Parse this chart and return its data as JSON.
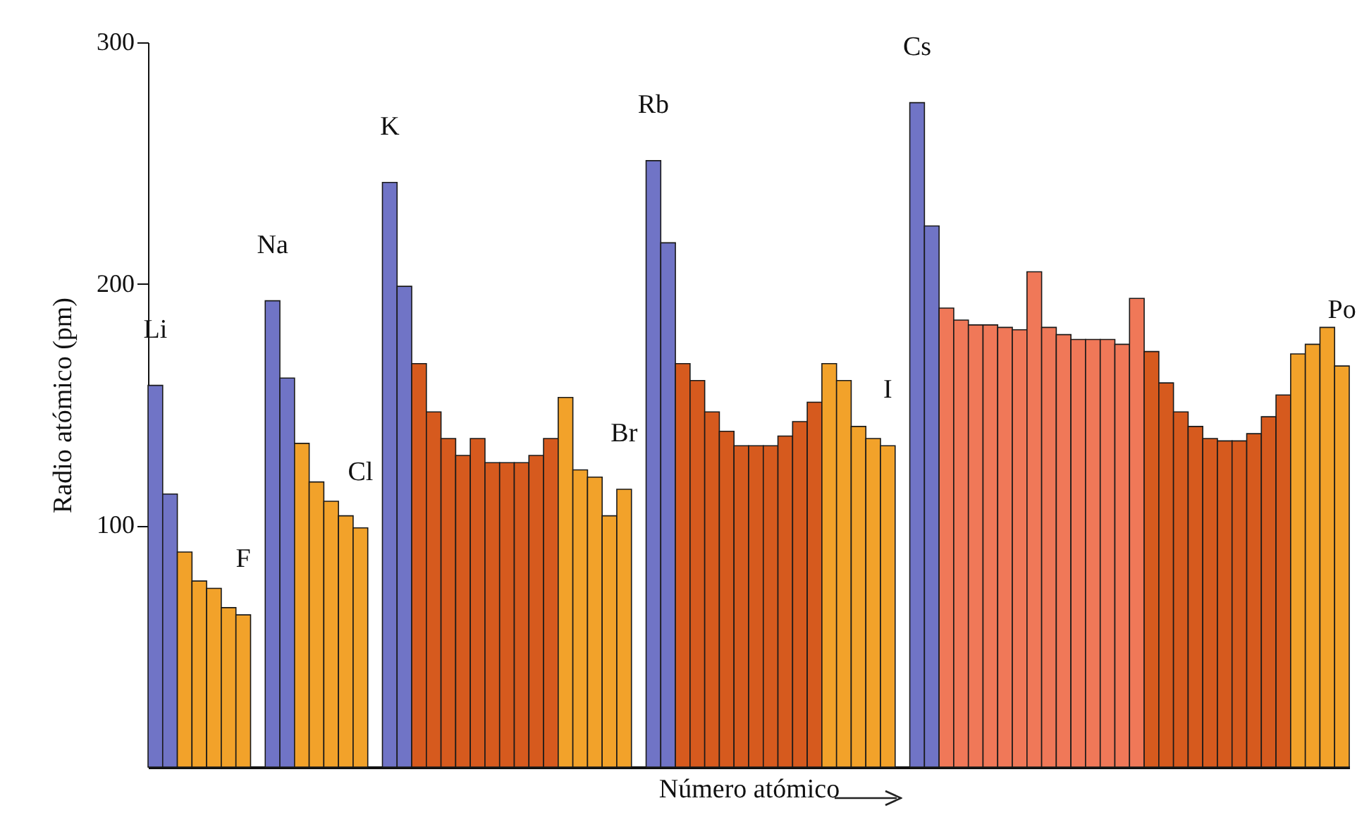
{
  "chart_data": {
    "type": "bar",
    "xlabel": "Número atómico",
    "ylabel": "Radio atómico (pm)",
    "ylim": [
      0,
      300
    ],
    "yticks": [
      100,
      200,
      300
    ],
    "grid": false,
    "categories": [
      "Li",
      null,
      null,
      null,
      null,
      null,
      "F",
      null,
      "Na",
      null,
      null,
      null,
      null,
      null,
      "Cl",
      null,
      "K",
      null,
      null,
      null,
      null,
      null,
      null,
      null,
      null,
      null,
      null,
      null,
      null,
      null,
      null,
      null,
      "Br",
      null,
      "Rb",
      null,
      null,
      null,
      null,
      null,
      null,
      null,
      null,
      null,
      null,
      null,
      null,
      null,
      null,
      null,
      "I",
      null,
      "Cs",
      null,
      null,
      null,
      null,
      null,
      null,
      null,
      null,
      null,
      null,
      null,
      null,
      null,
      null,
      null,
      null,
      null,
      null,
      null,
      null,
      null,
      null,
      null,
      null,
      null,
      null,
      null,
      null,
      "Po"
    ],
    "values": [
      158,
      113,
      89,
      77,
      74,
      66,
      63,
      null,
      193,
      161,
      134,
      118,
      110,
      104,
      99,
      null,
      242,
      199,
      167,
      147,
      136,
      129,
      136,
      126,
      126,
      126,
      129,
      136,
      153,
      123,
      120,
      104,
      115,
      null,
      251,
      217,
      167,
      160,
      147,
      139,
      133,
      133,
      133,
      137,
      143,
      151,
      167,
      160,
      141,
      136,
      133,
      null,
      275,
      224,
      190,
      185,
      183,
      183,
      182,
      181,
      205,
      182,
      179,
      177,
      177,
      177,
      175,
      194,
      172,
      159,
      147,
      141,
      136,
      135,
      135,
      138,
      145,
      154,
      171,
      175,
      182,
      166
    ],
    "colors": [
      "#7074c6",
      "#7074c6",
      "#f2a22a",
      "#f2a22a",
      "#f2a22a",
      "#f2a22a",
      "#f2a22a",
      null,
      "#7074c6",
      "#7074c6",
      "#f2a22a",
      "#f2a22a",
      "#f2a22a",
      "#f2a22a",
      "#f2a22a",
      null,
      "#7074c6",
      "#7074c6",
      "#d65a1e",
      "#d65a1e",
      "#d65a1e",
      "#d65a1e",
      "#d65a1e",
      "#d65a1e",
      "#d65a1e",
      "#d65a1e",
      "#d65a1e",
      "#d65a1e",
      "#f2a22a",
      "#f2a22a",
      "#f2a22a",
      "#f2a22a",
      "#f2a22a",
      null,
      "#7074c6",
      "#7074c6",
      "#d65a1e",
      "#d65a1e",
      "#d65a1e",
      "#d65a1e",
      "#d65a1e",
      "#d65a1e",
      "#d65a1e",
      "#d65a1e",
      "#d65a1e",
      "#d65a1e",
      "#f2a22a",
      "#f2a22a",
      "#f2a22a",
      "#f2a22a",
      "#f2a22a",
      null,
      "#7074c6",
      "#7074c6",
      "#f07858",
      "#f07858",
      "#f07858",
      "#f07858",
      "#f07858",
      "#f07858",
      "#f07858",
      "#f07858",
      "#f07858",
      "#f07858",
      "#f07858",
      "#f07858",
      "#f07858",
      "#f07858",
      "#d65a1e",
      "#d65a1e",
      "#d65a1e",
      "#d65a1e",
      "#d65a1e",
      "#d65a1e",
      "#d65a1e",
      "#d65a1e",
      "#d65a1e",
      "#d65a1e",
      "#f2a22a",
      "#f2a22a",
      "#f2a22a",
      "#f2a22a"
    ]
  }
}
